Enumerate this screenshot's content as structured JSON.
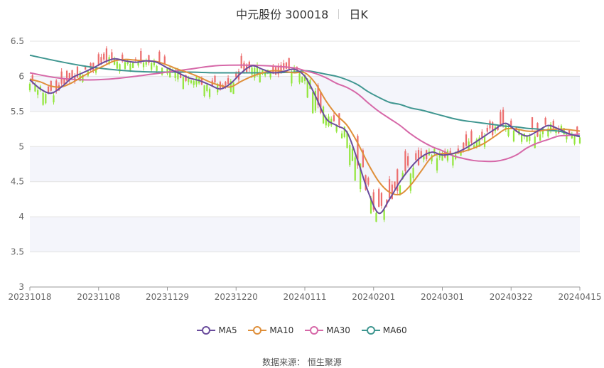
{
  "header": {
    "name": "中元股份 300018",
    "period": "日K"
  },
  "source": {
    "label": "数据来源：",
    "provider": "恒生聚源"
  },
  "legend": [
    {
      "name": "MA5",
      "color": "#6a4c9c"
    },
    {
      "name": "MA10",
      "color": "#df8f3a"
    },
    {
      "name": "MA30",
      "color": "#d668a8"
    },
    {
      "name": "MA60",
      "color": "#3f9690"
    }
  ],
  "chart_data": {
    "type": "candlestick",
    "x_ticks": [
      "20231018",
      "20231108",
      "20231129",
      "20231220",
      "20240111",
      "20240201",
      "20240301",
      "20240322",
      "20240415"
    ],
    "ylim": [
      3,
      6.5
    ],
    "yticks": [
      3,
      3.5,
      4,
      4.5,
      5,
      5.5,
      6,
      6.5
    ],
    "grid": true,
    "legend_position": "bottom",
    "colors": {
      "up": "#ec6e6e",
      "down": "#93e63c",
      "band": "#f4f5fb"
    },
    "ma_series": {
      "MA5": [
        [
          0,
          5.95
        ],
        [
          4,
          5.82
        ],
        [
          8,
          5.76
        ],
        [
          12,
          5.85
        ],
        [
          16,
          5.98
        ],
        [
          20,
          6.05
        ],
        [
          24,
          6.12
        ],
        [
          28,
          6.2
        ],
        [
          32,
          6.25
        ],
        [
          36,
          6.22
        ],
        [
          40,
          6.2
        ],
        [
          44,
          6.22
        ],
        [
          48,
          6.2
        ],
        [
          52,
          6.12
        ],
        [
          56,
          6.05
        ],
        [
          60,
          5.98
        ],
        [
          64,
          5.94
        ],
        [
          68,
          5.88
        ],
        [
          72,
          5.82
        ],
        [
          76,
          5.9
        ],
        [
          80,
          6.05
        ],
        [
          84,
          6.15
        ],
        [
          88,
          6.1
        ],
        [
          92,
          6.05
        ],
        [
          96,
          6.07
        ],
        [
          100,
          6.1
        ],
        [
          104,
          6.0
        ],
        [
          108,
          5.72
        ],
        [
          112,
          5.4
        ],
        [
          116,
          5.3
        ],
        [
          120,
          5.2
        ],
        [
          124,
          4.8
        ],
        [
          128,
          4.35
        ],
        [
          132,
          4.05
        ],
        [
          136,
          4.25
        ],
        [
          140,
          4.5
        ],
        [
          144,
          4.7
        ],
        [
          148,
          4.85
        ],
        [
          152,
          4.92
        ],
        [
          156,
          4.88
        ],
        [
          160,
          4.9
        ],
        [
          164,
          4.96
        ],
        [
          168,
          5.05
        ],
        [
          172,
          5.15
        ],
        [
          176,
          5.25
        ],
        [
          180,
          5.33
        ],
        [
          184,
          5.22
        ],
        [
          188,
          5.15
        ],
        [
          192,
          5.22
        ],
        [
          196,
          5.3
        ],
        [
          200,
          5.25
        ],
        [
          204,
          5.18
        ],
        [
          208,
          5.14
        ]
      ],
      "MA10": [
        [
          0,
          5.96
        ],
        [
          4,
          5.92
        ],
        [
          8,
          5.86
        ],
        [
          12,
          5.85
        ],
        [
          16,
          5.91
        ],
        [
          20,
          6.0
        ],
        [
          24,
          6.08
        ],
        [
          28,
          6.15
        ],
        [
          32,
          6.22
        ],
        [
          36,
          6.24
        ],
        [
          40,
          6.23
        ],
        [
          44,
          6.22
        ],
        [
          48,
          6.21
        ],
        [
          52,
          6.16
        ],
        [
          56,
          6.1
        ],
        [
          60,
          6.05
        ],
        [
          64,
          5.99
        ],
        [
          68,
          5.92
        ],
        [
          72,
          5.87
        ],
        [
          76,
          5.85
        ],
        [
          80,
          5.93
        ],
        [
          84,
          6.0
        ],
        [
          88,
          6.05
        ],
        [
          92,
          6.08
        ],
        [
          96,
          6.07
        ],
        [
          100,
          6.05
        ],
        [
          104,
          6.05
        ],
        [
          108,
          5.9
        ],
        [
          112,
          5.65
        ],
        [
          116,
          5.45
        ],
        [
          120,
          5.3
        ],
        [
          124,
          5.05
        ],
        [
          128,
          4.75
        ],
        [
          132,
          4.5
        ],
        [
          136,
          4.35
        ],
        [
          140,
          4.32
        ],
        [
          144,
          4.45
        ],
        [
          148,
          4.65
        ],
        [
          152,
          4.85
        ],
        [
          156,
          4.9
        ],
        [
          160,
          4.9
        ],
        [
          164,
          4.93
        ],
        [
          168,
          4.98
        ],
        [
          172,
          5.05
        ],
        [
          176,
          5.15
        ],
        [
          180,
          5.25
        ],
        [
          184,
          5.25
        ],
        [
          188,
          5.22
        ],
        [
          192,
          5.22
        ],
        [
          196,
          5.24
        ],
        [
          200,
          5.25
        ],
        [
          204,
          5.24
        ],
        [
          208,
          5.22
        ]
      ],
      "MA30": [
        [
          0,
          6.05
        ],
        [
          10,
          5.98
        ],
        [
          20,
          5.95
        ],
        [
          30,
          5.96
        ],
        [
          40,
          6.0
        ],
        [
          50,
          6.05
        ],
        [
          60,
          6.1
        ],
        [
          70,
          6.15
        ],
        [
          80,
          6.16
        ],
        [
          90,
          6.15
        ],
        [
          100,
          6.12
        ],
        [
          104,
          6.08
        ],
        [
          108,
          6.04
        ],
        [
          112,
          5.98
        ],
        [
          116,
          5.9
        ],
        [
          120,
          5.84
        ],
        [
          124,
          5.75
        ],
        [
          128,
          5.62
        ],
        [
          132,
          5.5
        ],
        [
          136,
          5.4
        ],
        [
          140,
          5.3
        ],
        [
          144,
          5.18
        ],
        [
          148,
          5.08
        ],
        [
          152,
          5.0
        ],
        [
          156,
          4.94
        ],
        [
          160,
          4.87
        ],
        [
          164,
          4.83
        ],
        [
          168,
          4.8
        ],
        [
          172,
          4.79
        ],
        [
          176,
          4.79
        ],
        [
          180,
          4.82
        ],
        [
          184,
          4.88
        ],
        [
          188,
          4.98
        ],
        [
          192,
          5.05
        ],
        [
          196,
          5.1
        ],
        [
          200,
          5.15
        ],
        [
          204,
          5.16
        ],
        [
          208,
          5.18
        ]
      ],
      "MA60": [
        [
          0,
          6.3
        ],
        [
          10,
          6.22
        ],
        [
          20,
          6.15
        ],
        [
          30,
          6.1
        ],
        [
          40,
          6.07
        ],
        [
          50,
          6.06
        ],
        [
          60,
          6.06
        ],
        [
          70,
          6.05
        ],
        [
          80,
          6.05
        ],
        [
          90,
          6.05
        ],
        [
          100,
          6.06
        ],
        [
          104,
          6.08
        ],
        [
          108,
          6.06
        ],
        [
          112,
          6.03
        ],
        [
          116,
          6.0
        ],
        [
          120,
          5.95
        ],
        [
          124,
          5.88
        ],
        [
          128,
          5.78
        ],
        [
          132,
          5.7
        ],
        [
          136,
          5.63
        ],
        [
          140,
          5.6
        ],
        [
          144,
          5.55
        ],
        [
          148,
          5.52
        ],
        [
          152,
          5.48
        ],
        [
          156,
          5.44
        ],
        [
          160,
          5.4
        ],
        [
          164,
          5.37
        ],
        [
          168,
          5.35
        ],
        [
          172,
          5.33
        ],
        [
          176,
          5.31
        ],
        [
          180,
          5.29
        ],
        [
          184,
          5.28
        ],
        [
          188,
          5.26
        ],
        [
          192,
          5.25
        ],
        [
          196,
          5.23
        ],
        [
          200,
          5.22
        ],
        [
          204,
          5.18
        ],
        [
          208,
          5.15
        ]
      ]
    }
  }
}
